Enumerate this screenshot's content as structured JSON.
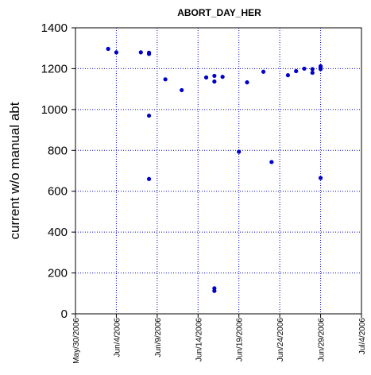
{
  "chart_data": {
    "type": "scatter",
    "title": "ABORT_DAY_HER",
    "xlabel": "",
    "ylabel": "current w/o manual abt",
    "xlim": [
      "2006-05-30",
      "2006-07-04"
    ],
    "ylim": [
      0,
      1400
    ],
    "grid": true,
    "x_tick_labels": [
      "May/30/2006",
      "Jun/4/2006",
      "Jun/9/2006",
      "Jun/14/2006",
      "Jun/19/2006",
      "Jun/24/2006",
      "Jun/29/2006",
      "Jul/4/2006"
    ],
    "y_tick_labels": [
      "0",
      "200",
      "400",
      "600",
      "800",
      "1000",
      "1200",
      "1400"
    ],
    "point_color": "#0000cc",
    "grid_color": "#0000cc",
    "points": [
      {
        "x": "2006-06-03",
        "y": 1297
      },
      {
        "x": "2006-06-04",
        "y": 1280
      },
      {
        "x": "2006-06-07",
        "y": 1280
      },
      {
        "x": "2006-06-08",
        "y": 1278
      },
      {
        "x": "2006-06-08",
        "y": 1272
      },
      {
        "x": "2006-06-08",
        "y": 970
      },
      {
        "x": "2006-06-08",
        "y": 660
      },
      {
        "x": "2006-06-10",
        "y": 1148
      },
      {
        "x": "2006-06-12",
        "y": 1095
      },
      {
        "x": "2006-06-15",
        "y": 1157
      },
      {
        "x": "2006-06-16",
        "y": 1165
      },
      {
        "x": "2006-06-16",
        "y": 1137
      },
      {
        "x": "2006-06-16",
        "y": 125
      },
      {
        "x": "2006-06-16",
        "y": 112
      },
      {
        "x": "2006-06-17",
        "y": 1160
      },
      {
        "x": "2006-06-19",
        "y": 793
      },
      {
        "x": "2006-06-20",
        "y": 1133
      },
      {
        "x": "2006-06-22",
        "y": 1185
      },
      {
        "x": "2006-06-23",
        "y": 743
      },
      {
        "x": "2006-06-25",
        "y": 1168
      },
      {
        "x": "2006-06-26",
        "y": 1188
      },
      {
        "x": "2006-06-27",
        "y": 1200
      },
      {
        "x": "2006-06-28",
        "y": 1198
      },
      {
        "x": "2006-06-28",
        "y": 1180
      },
      {
        "x": "2006-06-29",
        "y": 1212
      },
      {
        "x": "2006-06-29",
        "y": 1205
      },
      {
        "x": "2006-06-29",
        "y": 1198
      },
      {
        "x": "2006-06-29",
        "y": 665
      }
    ]
  }
}
